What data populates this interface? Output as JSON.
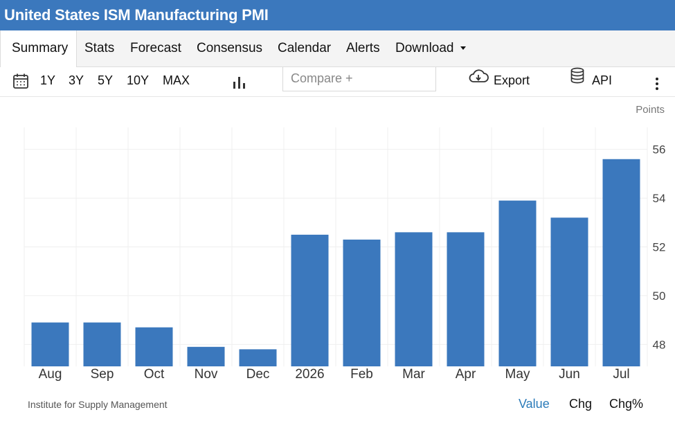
{
  "header": {
    "title": "United States ISM Manufacturing PMI"
  },
  "tabs": [
    {
      "label": "Summary"
    },
    {
      "label": "Stats"
    },
    {
      "label": "Forecast"
    },
    {
      "label": "Consensus"
    },
    {
      "label": "Calendar"
    },
    {
      "label": "Alerts"
    },
    {
      "label": "Download"
    }
  ],
  "toolbar": {
    "ranges": [
      "1Y",
      "3Y",
      "5Y",
      "10Y",
      "MAX"
    ],
    "compare_placeholder": "Compare +",
    "export_label": "Export",
    "api_label": "API"
  },
  "colors": {
    "brand": "#3b78bd",
    "bar": "#3b78bd",
    "link": "#2b7bb9"
  },
  "chart_data": {
    "type": "bar",
    "unit_label": "Points",
    "categories": [
      "Aug",
      "Sep",
      "Oct",
      "Nov",
      "Dec",
      "2026",
      "Feb",
      "Mar",
      "Apr",
      "May",
      "Jun",
      "Jul"
    ],
    "values": [
      48.9,
      48.9,
      48.7,
      47.9,
      47.8,
      52.5,
      52.3,
      52.6,
      52.6,
      53.9,
      53.2,
      55.6
    ],
    "y_ticks": [
      48,
      50,
      52,
      54,
      56
    ],
    "ylim": [
      47.1,
      56.9
    ],
    "grid": true,
    "source": "Institute for Supply Management"
  },
  "footer": {
    "source": "Institute for Supply Management",
    "value_label": "Value",
    "chg_label": "Chg",
    "chgpct_label": "Chg%"
  }
}
